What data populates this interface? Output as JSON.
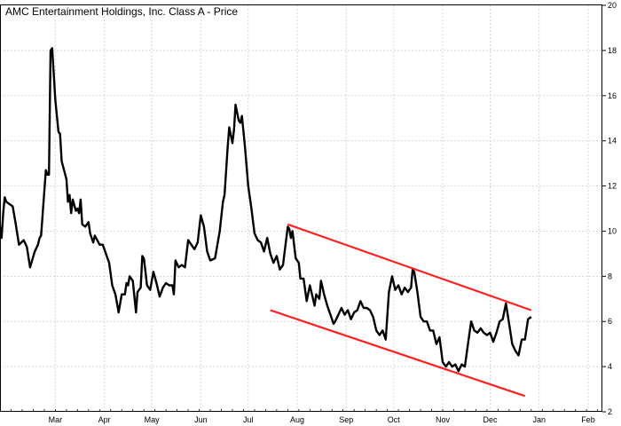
{
  "chart_data": {
    "type": "line",
    "title": "AMC Entertainment Holdings, Inc. Class A - Price",
    "xlabel": "",
    "ylabel": "",
    "ylim": [
      2,
      20
    ],
    "yticks": [
      2,
      4,
      6,
      8,
      10,
      12,
      14,
      16,
      18,
      20
    ],
    "ytick_labels": [
      "2",
      "4",
      "6",
      "8",
      "10",
      "12",
      "14",
      "16",
      "18",
      "20"
    ],
    "y_axis_side": "right",
    "grid": true,
    "x_start": "2021-02-08",
    "x_end": "2022-02-24",
    "month_labels": [
      {
        "label": "Mar",
        "date": "2021-03-15"
      },
      {
        "label": "Apr",
        "date": "2021-04-15"
      },
      {
        "label": "May",
        "date": "2021-05-15"
      },
      {
        "label": "Jun",
        "date": "2021-06-15"
      },
      {
        "label": "Jul",
        "date": "2021-07-15"
      },
      {
        "label": "Aug",
        "date": "2021-08-15"
      },
      {
        "label": "Sep",
        "date": "2021-09-15"
      },
      {
        "label": "Oct",
        "date": "2021-10-15"
      },
      {
        "label": "Nov",
        "date": "2021-11-15"
      },
      {
        "label": "Dec",
        "date": "2021-12-15"
      },
      {
        "label": "Jan",
        "date": "2022-01-15"
      },
      {
        "label": "Feb",
        "date": "2022-02-15"
      }
    ],
    "series": [
      {
        "name": "",
        "color": "#000000",
        "points": [
          [
            "2021-02-08",
            10.2
          ],
          [
            "2021-02-09",
            9.7
          ],
          [
            "2021-02-10",
            10.8
          ],
          [
            "2021-02-11",
            11.5
          ],
          [
            "2021-02-12",
            11.3
          ],
          [
            "2021-02-16",
            11.1
          ],
          [
            "2021-02-18",
            10.3
          ],
          [
            "2021-02-20",
            9.4
          ],
          [
            "2021-02-23",
            9.6
          ],
          [
            "2021-02-25",
            9.3
          ],
          [
            "2021-02-27",
            8.4
          ],
          [
            "2021-03-02",
            9.1
          ],
          [
            "2021-03-04",
            9.4
          ],
          [
            "2021-03-05",
            9.7
          ],
          [
            "2021-03-06",
            9.8
          ],
          [
            "2021-03-09",
            12.7
          ],
          [
            "2021-03-10",
            12.5
          ],
          [
            "2021-03-11",
            12.5
          ],
          [
            "2021-03-12",
            18.0
          ],
          [
            "2021-03-13",
            18.1
          ],
          [
            "2021-03-15",
            15.8
          ],
          [
            "2021-03-17",
            14.4
          ],
          [
            "2021-03-18",
            14.3
          ],
          [
            "2021-03-19",
            13.1
          ],
          [
            "2021-03-22",
            12.3
          ],
          [
            "2021-03-23",
            11.3
          ],
          [
            "2021-03-24",
            11.6
          ],
          [
            "2021-03-25",
            10.8
          ],
          [
            "2021-03-26",
            11.4
          ],
          [
            "2021-03-28",
            10.9
          ],
          [
            "2021-03-29",
            11.0
          ],
          [
            "2021-03-30",
            10.8
          ],
          [
            "2021-03-31",
            11.4
          ],
          [
            "2021-04-01",
            10.3
          ],
          [
            "2021-04-03",
            10.2
          ],
          [
            "2021-04-05",
            10.4
          ],
          [
            "2021-04-06",
            9.9
          ],
          [
            "2021-04-08",
            9.5
          ],
          [
            "2021-04-09",
            9.8
          ],
          [
            "2021-04-12",
            9.4
          ],
          [
            "2021-04-14",
            9.4
          ],
          [
            "2021-04-16",
            9.0
          ],
          [
            "2021-04-18",
            8.6
          ],
          [
            "2021-04-20",
            7.6
          ],
          [
            "2021-04-22",
            7.2
          ],
          [
            "2021-04-24",
            6.4
          ],
          [
            "2021-04-26",
            7.2
          ],
          [
            "2021-04-28",
            7.2
          ],
          [
            "2021-04-29",
            7.7
          ],
          [
            "2021-04-30",
            7.6
          ],
          [
            "2021-05-01",
            8.0
          ],
          [
            "2021-05-03",
            7.8
          ],
          [
            "2021-05-05",
            6.4
          ],
          [
            "2021-05-06",
            7.3
          ],
          [
            "2021-05-08",
            7.5
          ],
          [
            "2021-05-09",
            8.9
          ],
          [
            "2021-05-10",
            8.8
          ],
          [
            "2021-05-12",
            7.6
          ],
          [
            "2021-05-14",
            7.4
          ],
          [
            "2021-05-16",
            8.2
          ],
          [
            "2021-05-18",
            7.7
          ],
          [
            "2021-05-20",
            7.1
          ],
          [
            "2021-05-22",
            7.5
          ],
          [
            "2021-05-24",
            7.7
          ],
          [
            "2021-05-26",
            7.6
          ],
          [
            "2021-05-28",
            7.6
          ],
          [
            "2021-05-29",
            7.2
          ],
          [
            "2021-05-30",
            8.7
          ],
          [
            "2021-06-01",
            8.4
          ],
          [
            "2021-06-03",
            8.5
          ],
          [
            "2021-06-05",
            8.4
          ],
          [
            "2021-06-07",
            9.6
          ],
          [
            "2021-06-09",
            9.4
          ],
          [
            "2021-06-11",
            9.2
          ],
          [
            "2021-06-13",
            9.5
          ],
          [
            "2021-06-15",
            10.7
          ],
          [
            "2021-06-17",
            10.2
          ],
          [
            "2021-06-19",
            9.1
          ],
          [
            "2021-06-21",
            8.7
          ],
          [
            "2021-06-24",
            8.8
          ],
          [
            "2021-06-27",
            10.0
          ],
          [
            "2021-06-29",
            11.3
          ],
          [
            "2021-06-30",
            11.6
          ],
          [
            "2021-07-02",
            13.7
          ],
          [
            "2021-07-03",
            14.6
          ],
          [
            "2021-07-05",
            13.9
          ],
          [
            "2021-07-06",
            14.5
          ],
          [
            "2021-07-07",
            15.6
          ],
          [
            "2021-07-09",
            14.9
          ],
          [
            "2021-07-10",
            14.8
          ],
          [
            "2021-07-11",
            15.1
          ],
          [
            "2021-07-13",
            13.7
          ],
          [
            "2021-07-15",
            12.0
          ],
          [
            "2021-07-17",
            11.0
          ],
          [
            "2021-07-19",
            9.9
          ],
          [
            "2021-07-21",
            9.6
          ],
          [
            "2021-07-23",
            9.5
          ],
          [
            "2021-07-25",
            9.1
          ],
          [
            "2021-07-27",
            9.7
          ],
          [
            "2021-07-29",
            9.0
          ],
          [
            "2021-07-31",
            8.6
          ],
          [
            "2021-08-02",
            8.9
          ],
          [
            "2021-08-04",
            8.3
          ],
          [
            "2021-08-06",
            8.5
          ],
          [
            "2021-08-09",
            10.2
          ],
          [
            "2021-08-10",
            10.1
          ],
          [
            "2021-08-11",
            9.7
          ],
          [
            "2021-08-12",
            10.0
          ],
          [
            "2021-08-14",
            8.8
          ],
          [
            "2021-08-16",
            8.6
          ],
          [
            "2021-08-17",
            7.9
          ],
          [
            "2021-08-19",
            7.9
          ],
          [
            "2021-08-21",
            6.9
          ],
          [
            "2021-08-23",
            7.6
          ],
          [
            "2021-08-26",
            6.7
          ],
          [
            "2021-08-27",
            7.2
          ],
          [
            "2021-08-29",
            7.0
          ],
          [
            "2021-08-30",
            7.8
          ],
          [
            "2021-09-01",
            7.2
          ],
          [
            "2021-09-03",
            6.7
          ],
          [
            "2021-09-05",
            6.3
          ],
          [
            "2021-09-07",
            5.9
          ],
          [
            "2021-09-08",
            6.0
          ],
          [
            "2021-09-10",
            6.3
          ],
          [
            "2021-09-12",
            6.6
          ],
          [
            "2021-09-14",
            6.3
          ],
          [
            "2021-09-16",
            6.5
          ],
          [
            "2021-09-18",
            6.1
          ],
          [
            "2021-09-20",
            6.4
          ],
          [
            "2021-09-22",
            6.5
          ],
          [
            "2021-09-24",
            6.9
          ],
          [
            "2021-09-26",
            6.6
          ],
          [
            "2021-09-28",
            6.6
          ],
          [
            "2021-09-30",
            6.5
          ],
          [
            "2021-10-02",
            6.2
          ],
          [
            "2021-10-04",
            5.6
          ],
          [
            "2021-10-06",
            5.4
          ],
          [
            "2021-10-08",
            5.6
          ],
          [
            "2021-10-10",
            5.2
          ],
          [
            "2021-10-12",
            7.3
          ],
          [
            "2021-10-14",
            8.0
          ],
          [
            "2021-10-16",
            7.4
          ],
          [
            "2021-10-18",
            7.6
          ],
          [
            "2021-10-20",
            7.2
          ],
          [
            "2021-10-22",
            7.5
          ],
          [
            "2021-10-24",
            7.3
          ],
          [
            "2021-10-26",
            7.5
          ],
          [
            "2021-10-27",
            8.3
          ],
          [
            "2021-10-28",
            8.2
          ],
          [
            "2021-10-30",
            7.3
          ],
          [
            "2021-11-01",
            6.2
          ],
          [
            "2021-11-03",
            6.0
          ],
          [
            "2021-11-05",
            6.0
          ],
          [
            "2021-11-07",
            5.6
          ],
          [
            "2021-11-09",
            5.6
          ],
          [
            "2021-11-11",
            5.0
          ],
          [
            "2021-11-13",
            5.3
          ],
          [
            "2021-11-15",
            4.2
          ],
          [
            "2021-11-17",
            4.0
          ],
          [
            "2021-11-19",
            4.2
          ],
          [
            "2021-11-21",
            4.0
          ],
          [
            "2021-11-23",
            4.1
          ],
          [
            "2021-11-25",
            3.8
          ],
          [
            "2021-11-27",
            4.1
          ],
          [
            "2021-11-29",
            4.0
          ],
          [
            "2021-12-01",
            5.0
          ],
          [
            "2021-12-03",
            6.0
          ],
          [
            "2021-12-05",
            5.6
          ],
          [
            "2021-12-07",
            5.5
          ],
          [
            "2021-12-09",
            5.7
          ],
          [
            "2021-12-11",
            5.5
          ],
          [
            "2021-12-13",
            5.4
          ],
          [
            "2021-12-15",
            5.5
          ],
          [
            "2021-12-17",
            5.1
          ],
          [
            "2021-12-19",
            5.5
          ],
          [
            "2021-12-21",
            6.0
          ],
          [
            "2021-12-23",
            6.1
          ],
          [
            "2021-12-25",
            6.8
          ],
          [
            "2021-12-27",
            5.9
          ],
          [
            "2021-12-29",
            5.0
          ],
          [
            "2021-12-31",
            4.7
          ],
          [
            "2022-01-02",
            4.5
          ],
          [
            "2022-01-04",
            5.2
          ],
          [
            "2022-01-06",
            5.2
          ],
          [
            "2022-01-08",
            6.1
          ],
          [
            "2022-01-10",
            6.2
          ]
        ]
      }
    ],
    "trendlines": [
      {
        "color": "#ff1f1f",
        "points": [
          [
            "2021-08-09",
            10.3
          ],
          [
            "2022-01-10",
            6.5
          ]
        ]
      },
      {
        "color": "#ff1f1f",
        "points": [
          [
            "2021-07-29",
            6.5
          ],
          [
            "2022-01-06",
            2.7
          ]
        ]
      }
    ]
  }
}
